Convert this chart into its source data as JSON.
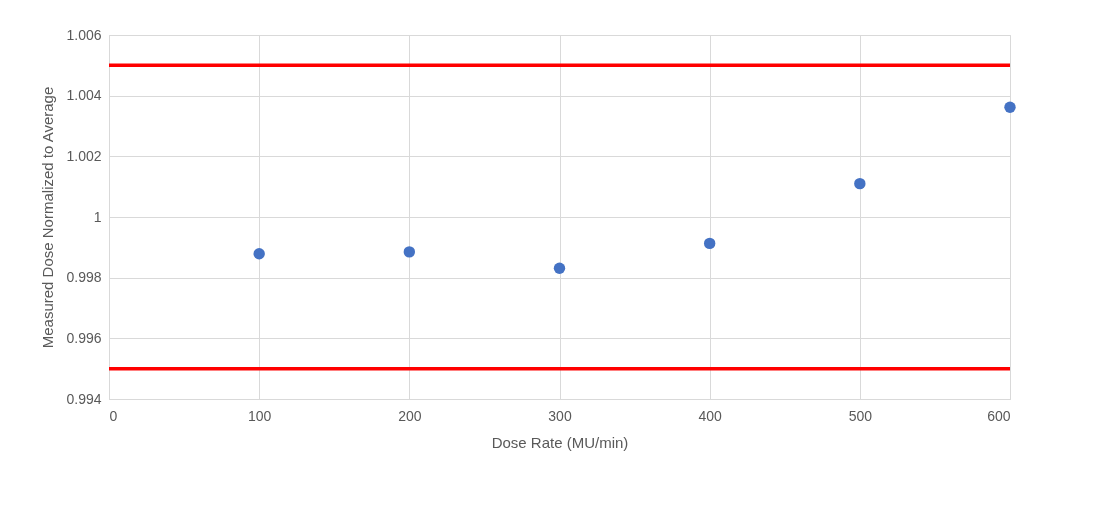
{
  "chart_data": {
    "type": "scatter",
    "xlabel": "Dose Rate (MU/min)",
    "ylabel": "Measured Dose Normalized to Average",
    "x": [
      100,
      200,
      300,
      400,
      500,
      600
    ],
    "series": [
      {
        "color": "#4472c4",
        "values": [
          0.99879,
          0.99885,
          0.99831,
          0.99913,
          1.0011,
          1.00362
        ]
      }
    ],
    "xlim": [
      0,
      600
    ],
    "xticks": [
      0,
      100,
      200,
      300,
      400,
      500,
      600
    ],
    "ylim": [
      0.994,
      1.006
    ],
    "yticks": [
      0.994,
      0.996,
      0.998,
      1,
      1.002,
      1.004,
      1.006
    ],
    "ref_lines": [
      {
        "axis": "y",
        "value": 1.005,
        "color": "#ff0000"
      },
      {
        "axis": "y",
        "value": 0.995,
        "color": "#ff0000"
      }
    ],
    "grid": true,
    "marker": "circle",
    "legend": false
  }
}
